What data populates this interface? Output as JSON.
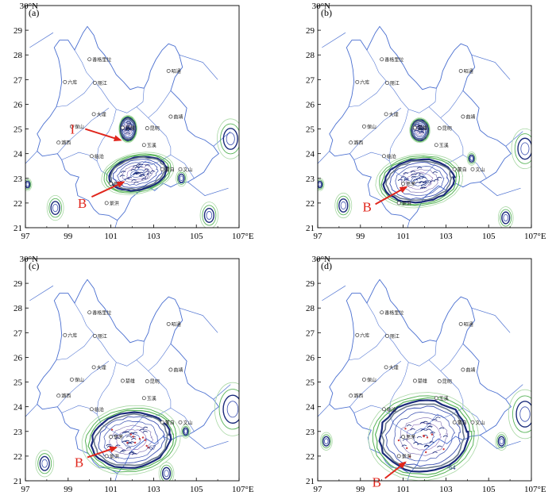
{
  "axis": {
    "x_ticks": [
      "97",
      "99",
      "101",
      "103",
      "105",
      "107°E"
    ],
    "y_ticks": [
      "21",
      "22",
      "23",
      "24",
      "25",
      "26",
      "27",
      "28",
      "29",
      "30°N"
    ]
  },
  "panels": [
    {
      "label": "(a)",
      "annotations": [
        {
          "text": "I",
          "target": "dali-south"
        },
        {
          "text": "B",
          "target": "main-south"
        }
      ],
      "value_labels": [
        "-57"
      ],
      "show_north_cell": true
    },
    {
      "label": "(b)",
      "annotations": [
        {
          "text": "B",
          "target": "main-southwest"
        }
      ],
      "value_labels": [
        "-69"
      ],
      "show_north_cell": true
    },
    {
      "label": "(c)",
      "annotations": [
        {
          "text": "B",
          "target": "main-southwest"
        }
      ],
      "value_labels": [
        "-67"
      ],
      "show_north_cell": false
    },
    {
      "label": "(d)",
      "annotations": [
        {
          "text": "B",
          "target": "main-southwest"
        }
      ],
      "value_labels": [
        "-64"
      ],
      "show_north_cell": false
    }
  ],
  "cities": [
    {
      "name": "香格里拉",
      "lon": 100.0,
      "lat": 27.82
    },
    {
      "name": "昭通",
      "lon": 103.7,
      "lat": 27.35
    },
    {
      "name": "六库",
      "lon": 98.85,
      "lat": 26.9
    },
    {
      "name": "丽江",
      "lon": 100.25,
      "lat": 26.87
    },
    {
      "name": "大理",
      "lon": 100.2,
      "lat": 25.6
    },
    {
      "name": "曲靖",
      "lon": 103.8,
      "lat": 25.5
    },
    {
      "name": "保山",
      "lon": 99.17,
      "lat": 25.1
    },
    {
      "name": "楚雄",
      "lon": 101.55,
      "lat": 25.05
    },
    {
      "name": "昆明",
      "lon": 102.7,
      "lat": 25.03
    },
    {
      "name": "玉溪",
      "lon": 102.55,
      "lat": 24.35
    },
    {
      "name": "潞西",
      "lon": 98.55,
      "lat": 24.45
    },
    {
      "name": "临沧",
      "lon": 100.1,
      "lat": 23.9
    },
    {
      "name": "蒙自",
      "lon": 103.4,
      "lat": 23.37
    },
    {
      "name": "文山",
      "lon": 104.25,
      "lat": 23.37
    },
    {
      "name": "思茅",
      "lon": 101.0,
      "lat": 22.78
    },
    {
      "name": "景洪",
      "lon": 100.8,
      "lat": 22.0
    }
  ],
  "colors": {
    "border": "#4a6fd0",
    "contour_dark": "#1a2a7a",
    "contour_mid": "#3a4fb0",
    "contour_green": "#5ab45a",
    "contour_light": "#a9d8a5",
    "arrow": "#e0261c",
    "annotation": "#e0261c"
  }
}
